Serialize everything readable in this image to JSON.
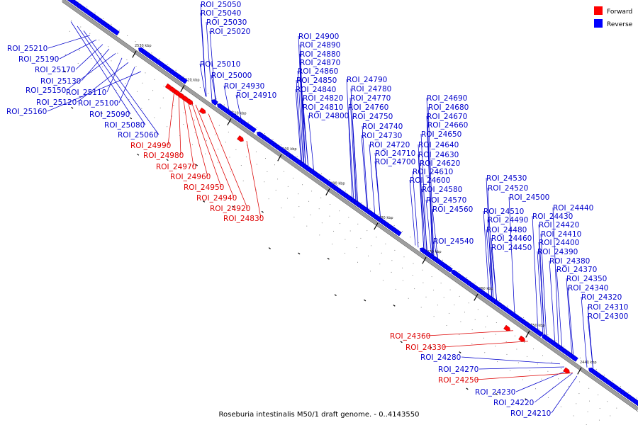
{
  "caption": "Roseburia intestinalis M50/1 draft genome. - 0..4143550",
  "legend": [
    {
      "label": "Forward",
      "color": "#ff0000"
    },
    {
      "label": "Reverse",
      "color": "#0000ff"
    }
  ],
  "scale_ticks": [
    "2530 kbp",
    "2520 kbp",
    "2510 kbp",
    "2500 kbp",
    "2490 kbp",
    "2480 kbp",
    "2470 kbp",
    "2460 kbp",
    "2450 kbp",
    "2440 kbp"
  ],
  "reverse_rois": [
    "ROI_25050",
    "ROI_25040",
    "ROI_25030",
    "ROI_25020",
    "ROI_25010",
    "ROI_25000",
    "ROI_24930",
    "ROI_24910",
    "ROI_24900",
    "ROI_24890",
    "ROI_24880",
    "ROI_24870",
    "ROI_24860",
    "ROI_24850",
    "ROI_24840",
    "ROI_24820",
    "ROI_24810",
    "ROI_24800",
    "ROI_24790",
    "ROI_24780",
    "ROI_24770",
    "ROI_24760",
    "ROI_24750",
    "ROI_24740",
    "ROI_24730",
    "ROI_24720",
    "ROI_24710",
    "ROI_24700",
    "ROI_24690",
    "ROI_24680",
    "ROI_24670",
    "ROI_24660",
    "ROI_24650",
    "ROI_24640",
    "ROI_24630",
    "ROI_24620",
    "ROI_24610",
    "ROI_24600",
    "ROI_24580",
    "ROI_24570",
    "ROI_24560",
    "ROI_24530",
    "ROI_24520",
    "ROI_24500",
    "ROI_24510",
    "ROI_24490",
    "ROI_24480",
    "ROI_24460",
    "ROI_24450",
    "ROI_24540",
    "ROI_24440",
    "ROI_24430",
    "ROI_24420",
    "ROI_24410",
    "ROI_24400",
    "ROI_24390",
    "ROI_24380",
    "ROI_24370",
    "ROI_24350",
    "ROI_24340",
    "ROI_24320",
    "ROI_24310",
    "ROI_24300",
    "ROI_25210",
    "ROI_25190",
    "ROI_25170",
    "ROI_25130",
    "ROI_25150",
    "ROI_25110",
    "ROI_25120",
    "ROI_25100",
    "ROI_25160",
    "ROI_25090",
    "ROI_25080",
    "ROI_25060",
    "ROI_24280",
    "ROI_24270",
    "ROI_24230",
    "ROI_24220",
    "ROI_24210"
  ],
  "forward_rois": [
    "ROI_24990",
    "ROI_24980",
    "ROI_24970",
    "ROI_24960",
    "ROI_24950",
    "ROI_24940",
    "ROI_24920",
    "ROI_24830",
    "ROI_24360",
    "ROI_24330",
    "ROI_24250"
  ]
}
